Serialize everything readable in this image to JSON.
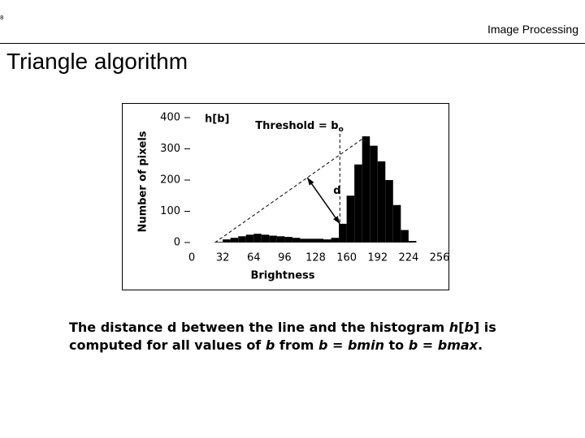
{
  "page_number": "8",
  "header": {
    "title": "Image Processing"
  },
  "title": "Triangle algorithm",
  "chart_data": {
    "type": "histogram",
    "xlabel": "Brightness",
    "ylabel": "Number of pixels",
    "annotations": {
      "series_label": "h[b]",
      "threshold_label": "Threshold = b",
      "threshold_sub": "o",
      "distance_label": "d"
    },
    "bins": [
      0,
      8,
      16,
      24,
      32,
      40,
      48,
      56,
      64,
      72,
      80,
      88,
      96,
      104,
      112,
      120,
      128,
      136,
      144,
      152,
      160,
      168,
      176,
      184,
      192,
      200,
      208,
      216,
      224,
      232,
      240,
      248,
      256
    ],
    "values": [
      0,
      0,
      0,
      2,
      10,
      15,
      20,
      25,
      28,
      25,
      22,
      20,
      18,
      15,
      12,
      12,
      12,
      10,
      15,
      60,
      150,
      250,
      340,
      310,
      260,
      200,
      120,
      40,
      5,
      0,
      0,
      0
    ],
    "color": "#000000",
    "threshold": 153,
    "xlim": [
      0,
      256
    ],
    "xticks": [
      0,
      32,
      64,
      96,
      128,
      160,
      192,
      224,
      256
    ],
    "ylim": [
      0,
      400
    ],
    "yticks": [
      0,
      100,
      200,
      300,
      400
    ]
  },
  "caption": [
    {
      "text": "The distance d between the line and the histogram ",
      "italic": false
    },
    {
      "text": "h",
      "italic": true
    },
    {
      "text": "[",
      "italic": false
    },
    {
      "text": "b",
      "italic": true
    },
    {
      "text": "] is computed for all values of ",
      "italic": false
    },
    {
      "text": "b",
      "italic": true
    },
    {
      "text": " from ",
      "italic": false
    },
    {
      "text": "b",
      "italic": true
    },
    {
      "text": " = ",
      "italic": false
    },
    {
      "text": "bmin",
      "italic": true
    },
    {
      "text": " to ",
      "italic": false
    },
    {
      "text": "b",
      "italic": true
    },
    {
      "text": " = ",
      "italic": false
    },
    {
      "text": "bmax",
      "italic": true
    },
    {
      "text": ".",
      "italic": false
    }
  ]
}
